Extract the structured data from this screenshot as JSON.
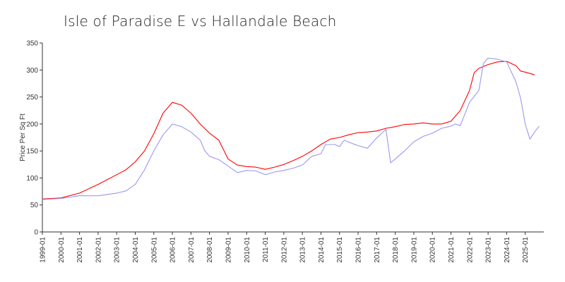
{
  "chart_data": {
    "type": "line",
    "title": "Isle of Paradise E vs Hallandale Beach",
    "xlabel": "",
    "ylabel": "Price Per Sq Ft",
    "ylim": [
      0,
      350
    ],
    "yticks": [
      0,
      50,
      100,
      150,
      200,
      250,
      300,
      350
    ],
    "x_tick_labels": [
      "1999-01",
      "2000-01",
      "2001-01",
      "2002-01",
      "2003-01",
      "2004-01",
      "2005-01",
      "2006-01",
      "2007-01",
      "2008-01",
      "2009-01",
      "2010-01",
      "2011-01",
      "2012-01",
      "2013-01",
      "2014-01",
      "2015-01",
      "2016-01",
      "2017-01",
      "2018-01",
      "2019-01",
      "2020-01",
      "2021-01",
      "2022-01",
      "2023-01",
      "2024-01",
      "2025-01"
    ],
    "grid": false,
    "legend": "none",
    "series": [
      {
        "color": "#ff0000",
        "points": [
          [
            "1999-01",
            61
          ],
          [
            "2000-01",
            63
          ],
          [
            "2001-01",
            72
          ],
          [
            "2002-01",
            88
          ],
          [
            "2003-01",
            106
          ],
          [
            "2003-07",
            115
          ],
          [
            "2004-01",
            130
          ],
          [
            "2004-07",
            150
          ],
          [
            "2005-01",
            182
          ],
          [
            "2005-07",
            220
          ],
          [
            "2006-01",
            240
          ],
          [
            "2006-07",
            235
          ],
          [
            "2007-01",
            220
          ],
          [
            "2007-07",
            200
          ],
          [
            "2008-01",
            183
          ],
          [
            "2008-07",
            170
          ],
          [
            "2009-01",
            135
          ],
          [
            "2009-07",
            124
          ],
          [
            "2010-01",
            121
          ],
          [
            "2010-07",
            120
          ],
          [
            "2011-01",
            116
          ],
          [
            "2011-07",
            120
          ],
          [
            "2012-01",
            125
          ],
          [
            "2012-07",
            132
          ],
          [
            "2013-01",
            140
          ],
          [
            "2013-07",
            150
          ],
          [
            "2014-01",
            162
          ],
          [
            "2014-07",
            172
          ],
          [
            "2015-01",
            175
          ],
          [
            "2015-07",
            180
          ],
          [
            "2016-01",
            184
          ],
          [
            "2016-07",
            185
          ],
          [
            "2017-01",
            187
          ],
          [
            "2017-07",
            192
          ],
          [
            "2018-01",
            195
          ],
          [
            "2018-07",
            199
          ],
          [
            "2019-01",
            200
          ],
          [
            "2019-07",
            202
          ],
          [
            "2020-01",
            200
          ],
          [
            "2020-07",
            200
          ],
          [
            "2021-01",
            205
          ],
          [
            "2021-07",
            225
          ],
          [
            "2022-01",
            262
          ],
          [
            "2022-04",
            295
          ],
          [
            "2022-07",
            303
          ],
          [
            "2023-01",
            310
          ],
          [
            "2023-07",
            315
          ],
          [
            "2024-01",
            316
          ],
          [
            "2024-07",
            308
          ],
          [
            "2024-10",
            298
          ],
          [
            "2025-01",
            296
          ],
          [
            "2025-07",
            291
          ]
        ]
      },
      {
        "color": "#9999ee",
        "points": [
          [
            "1999-01",
            60
          ],
          [
            "2000-01",
            62
          ],
          [
            "2001-01",
            67
          ],
          [
            "2002-01",
            67
          ],
          [
            "2003-01",
            72
          ],
          [
            "2003-07",
            76
          ],
          [
            "2004-01",
            88
          ],
          [
            "2004-07",
            115
          ],
          [
            "2005-01",
            150
          ],
          [
            "2005-07",
            180
          ],
          [
            "2006-01",
            200
          ],
          [
            "2006-07",
            195
          ],
          [
            "2007-01",
            185
          ],
          [
            "2007-07",
            170
          ],
          [
            "2007-10",
            150
          ],
          [
            "2008-01",
            140
          ],
          [
            "2008-07",
            134
          ],
          [
            "2009-01",
            122
          ],
          [
            "2009-07",
            110
          ],
          [
            "2010-01",
            114
          ],
          [
            "2010-07",
            113
          ],
          [
            "2011-01",
            106
          ],
          [
            "2011-07",
            111
          ],
          [
            "2012-01",
            114
          ],
          [
            "2012-07",
            118
          ],
          [
            "2013-01",
            124
          ],
          [
            "2013-07",
            140
          ],
          [
            "2014-01",
            145
          ],
          [
            "2014-04",
            162
          ],
          [
            "2014-10",
            162
          ],
          [
            "2015-01",
            158
          ],
          [
            "2015-04",
            170
          ],
          [
            "2015-10",
            163
          ],
          [
            "2016-01",
            160
          ],
          [
            "2016-07",
            155
          ],
          [
            "2017-01",
            174
          ],
          [
            "2017-07",
            190
          ],
          [
            "2017-10",
            128
          ],
          [
            "2018-01",
            135
          ],
          [
            "2018-07",
            150
          ],
          [
            "2019-01",
            167
          ],
          [
            "2019-07",
            177
          ],
          [
            "2020-01",
            183
          ],
          [
            "2020-07",
            192
          ],
          [
            "2021-01",
            196
          ],
          [
            "2021-04",
            200
          ],
          [
            "2021-07",
            197
          ],
          [
            "2022-01",
            240
          ],
          [
            "2022-07",
            262
          ],
          [
            "2022-10",
            312
          ],
          [
            "2023-01",
            322
          ],
          [
            "2023-07",
            320
          ],
          [
            "2024-01",
            315
          ],
          [
            "2024-07",
            278
          ],
          [
            "2024-10",
            248
          ],
          [
            "2025-01",
            200
          ],
          [
            "2025-04",
            172
          ],
          [
            "2025-07",
            185
          ],
          [
            "2025-10",
            196
          ]
        ]
      }
    ]
  }
}
